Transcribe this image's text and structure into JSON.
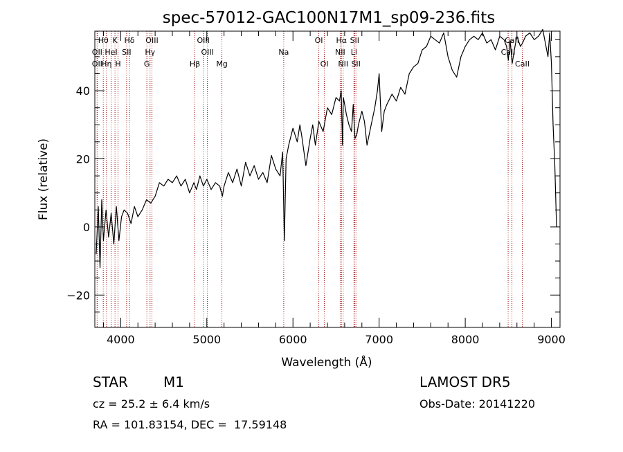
{
  "chart_data": {
    "type": "line",
    "title": "spec-57012-GAC100N17M1_sp09-236.fits",
    "xlabel": "Wavelength (Å)",
    "ylabel": "Flux (relative)",
    "xlim": [
      3700,
      9100
    ],
    "ylim": [
      -29.5,
      57.5
    ],
    "x_ticks": [
      4000,
      5000,
      6000,
      7000,
      8000,
      9000
    ],
    "x_tick_labels": [
      "4000",
      "5000",
      "6000",
      "7000",
      "8000",
      "9000"
    ],
    "y_ticks": [
      -20,
      0,
      20,
      40
    ],
    "y_tick_labels": [
      "−20",
      "0",
      "20",
      "40"
    ],
    "grid": false,
    "line_color": "#000000",
    "marker_color": "#a01010",
    "spectral_lines": [
      {
        "label": "Hθ",
        "x": 3798,
        "row": 1
      },
      {
        "label": "OII",
        "x": 3727,
        "row": 2
      },
      {
        "label": "OII",
        "x": 3727,
        "row": 3
      },
      {
        "label": "Hη",
        "x": 3835,
        "row": 3
      },
      {
        "label": "HeI",
        "x": 3889,
        "row": 2
      },
      {
        "label": "K",
        "x": 3934,
        "row": 1
      },
      {
        "label": "H",
        "x": 3969,
        "row": 3
      },
      {
        "label": "SII",
        "x": 4069,
        "row": 2
      },
      {
        "label": "Hδ",
        "x": 4102,
        "row": 1
      },
      {
        "label": "OIII",
        "x": 4363,
        "row": 1
      },
      {
        "label": "Hγ",
        "x": 4341,
        "row": 2
      },
      {
        "label": "G",
        "x": 4304,
        "row": 3
      },
      {
        "label": "OIII",
        "x": 4959,
        "row": 1
      },
      {
        "label": "OIII",
        "x": 5007,
        "row": 2
      },
      {
        "label": "Hβ",
        "x": 4861,
        "row": 3
      },
      {
        "label": "Mg",
        "x": 5175,
        "row": 3
      },
      {
        "label": "Na",
        "x": 5893,
        "row": 2
      },
      {
        "label": "OI",
        "x": 6300,
        "row": 1
      },
      {
        "label": "OI",
        "x": 6364,
        "row": 3
      },
      {
        "label": "Hα",
        "x": 6563,
        "row": 1
      },
      {
        "label": "NII",
        "x": 6548,
        "row": 2
      },
      {
        "label": "NII",
        "x": 6583,
        "row": 3
      },
      {
        "label": "SII",
        "x": 6716,
        "row": 1
      },
      {
        "label": "Li",
        "x": 6708,
        "row": 2
      },
      {
        "label": "SII",
        "x": 6731,
        "row": 3
      },
      {
        "label": "CaII",
        "x": 8542,
        "row": 1
      },
      {
        "label": "CaII",
        "x": 8498,
        "row": 2
      },
      {
        "label": "CaII",
        "x": 8662,
        "row": 3
      }
    ],
    "x": [
      3715,
      3740,
      3760,
      3780,
      3800,
      3830,
      3860,
      3890,
      3920,
      3950,
      3980,
      4010,
      4040,
      4080,
      4120,
      4160,
      4200,
      4250,
      4300,
      4350,
      4400,
      4450,
      4500,
      4550,
      4600,
      4650,
      4700,
      4750,
      4800,
      4850,
      4880,
      4920,
      4960,
      5000,
      5050,
      5100,
      5150,
      5180,
      5200,
      5250,
      5300,
      5350,
      5400,
      5450,
      5500,
      5550,
      5600,
      5650,
      5700,
      5750,
      5800,
      5850,
      5880,
      5890,
      5900,
      5920,
      5950,
      6000,
      6050,
      6080,
      6100,
      6150,
      6200,
      6230,
      6260,
      6300,
      6350,
      6400,
      6450,
      6500,
      6540,
      6560,
      6575,
      6585,
      6600,
      6620,
      6650,
      6680,
      6700,
      6720,
      6740,
      6760,
      6800,
      6830,
      6860,
      6900,
      6950,
      6980,
      7000,
      7030,
      7060,
      7090,
      7150,
      7200,
      7250,
      7300,
      7350,
      7400,
      7450,
      7500,
      7550,
      7600,
      7650,
      7700,
      7750,
      7800,
      7850,
      7900,
      7950,
      8000,
      8050,
      8100,
      8150,
      8200,
      8250,
      8300,
      8350,
      8400,
      8450,
      8480,
      8500,
      8520,
      8545,
      8570,
      8600,
      8640,
      8665,
      8700,
      8750,
      8800,
      8850,
      8900,
      8930,
      8960,
      8980,
      9000,
      9020,
      9040,
      9060
    ],
    "y": [
      -8,
      6,
      -12,
      8,
      -4,
      5,
      -3,
      4,
      -5,
      6,
      -4,
      3,
      5,
      4,
      1,
      6,
      3,
      5,
      8,
      7,
      9,
      13,
      12,
      14,
      13,
      15,
      12,
      14,
      10,
      13,
      11,
      15,
      12,
      14,
      11,
      13,
      12,
      9,
      12,
      16,
      13,
      17,
      12,
      19,
      15,
      18,
      14,
      16,
      13,
      21,
      17,
      15,
      22,
      10,
      -4,
      20,
      24,
      29,
      25,
      30,
      27,
      18,
      26,
      30,
      24,
      31,
      28,
      35,
      33,
      38,
      37,
      40,
      24,
      38,
      36,
      33,
      30,
      28,
      36,
      26,
      27,
      30,
      34,
      31,
      24,
      29,
      35,
      40,
      45,
      28,
      34,
      36,
      39,
      37,
      41,
      39,
      45,
      47,
      48,
      52,
      53,
      56,
      55,
      54,
      57,
      50,
      46,
      44,
      50,
      53,
      55,
      56,
      55,
      57,
      54,
      55,
      52,
      56,
      55,
      53,
      49,
      55,
      48,
      52,
      56,
      53,
      54,
      56,
      57,
      55,
      56,
      58,
      54,
      50,
      57,
      48,
      30,
      18,
      0
    ]
  },
  "info": {
    "object_class": "STAR",
    "subclass": "M1",
    "survey": "LAMOST DR5",
    "redshift": "cz = 25.2 ± 6.4 km/s",
    "obs_date": "Obs-Date: 20141220",
    "coords": "RA = 101.83154, DEC =  17.59148"
  }
}
